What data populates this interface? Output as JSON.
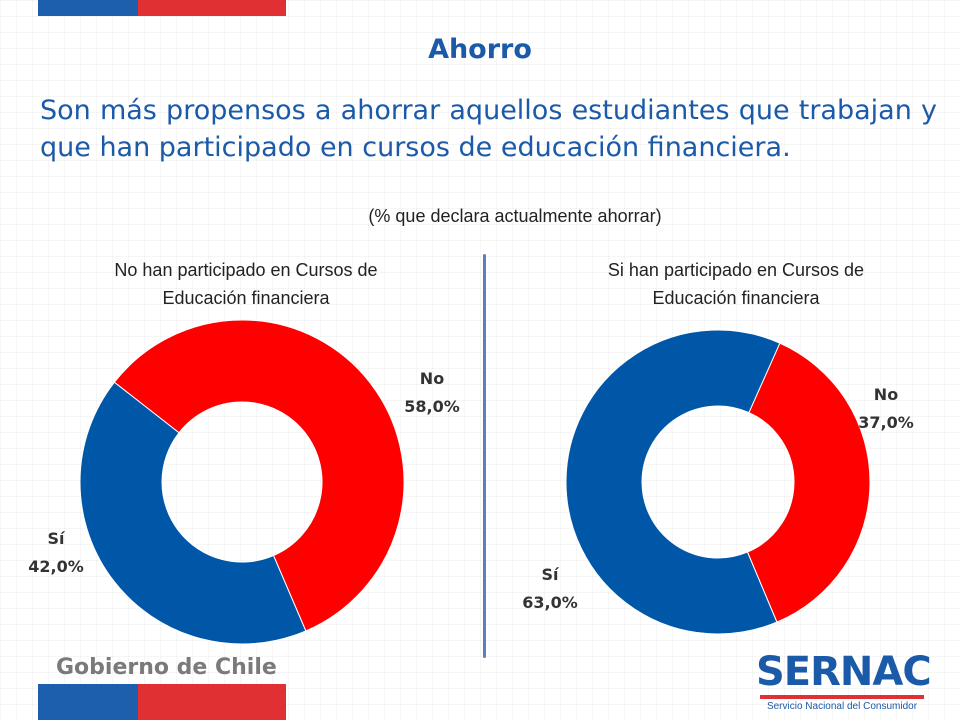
{
  "header": {
    "title": "Ahorro",
    "subtitle": "Son más propensos a ahorrar aquellos estudiantes que trabajan y que han participado en cursos de educación financiera.",
    "note": "(% que declara actualmente ahorrar)"
  },
  "footer": {
    "gobierno": "Gobierno de Chile",
    "sernac_word": "SERNAC",
    "sernac_sub": "Servicio Nacional del Consumidor"
  },
  "colors": {
    "no": "#ff0000",
    "si": "#0057a8",
    "accent": "#1b5aa8"
  },
  "chart_data": [
    {
      "type": "pie",
      "title": "No han participado en Cursos de Educación financiera",
      "slices": [
        {
          "label": "No",
          "value": 58.0,
          "value_label": "58,0%"
        },
        {
          "label": "Sí",
          "value": 42.0,
          "value_label": "42,0%"
        }
      ]
    },
    {
      "type": "pie",
      "title": "Si han participado en Cursos de Educación financiera",
      "slices": [
        {
          "label": "No",
          "value": 37.0,
          "value_label": "37,0%"
        },
        {
          "label": "Sí",
          "value": 63.0,
          "value_label": "63,0%"
        }
      ]
    }
  ]
}
